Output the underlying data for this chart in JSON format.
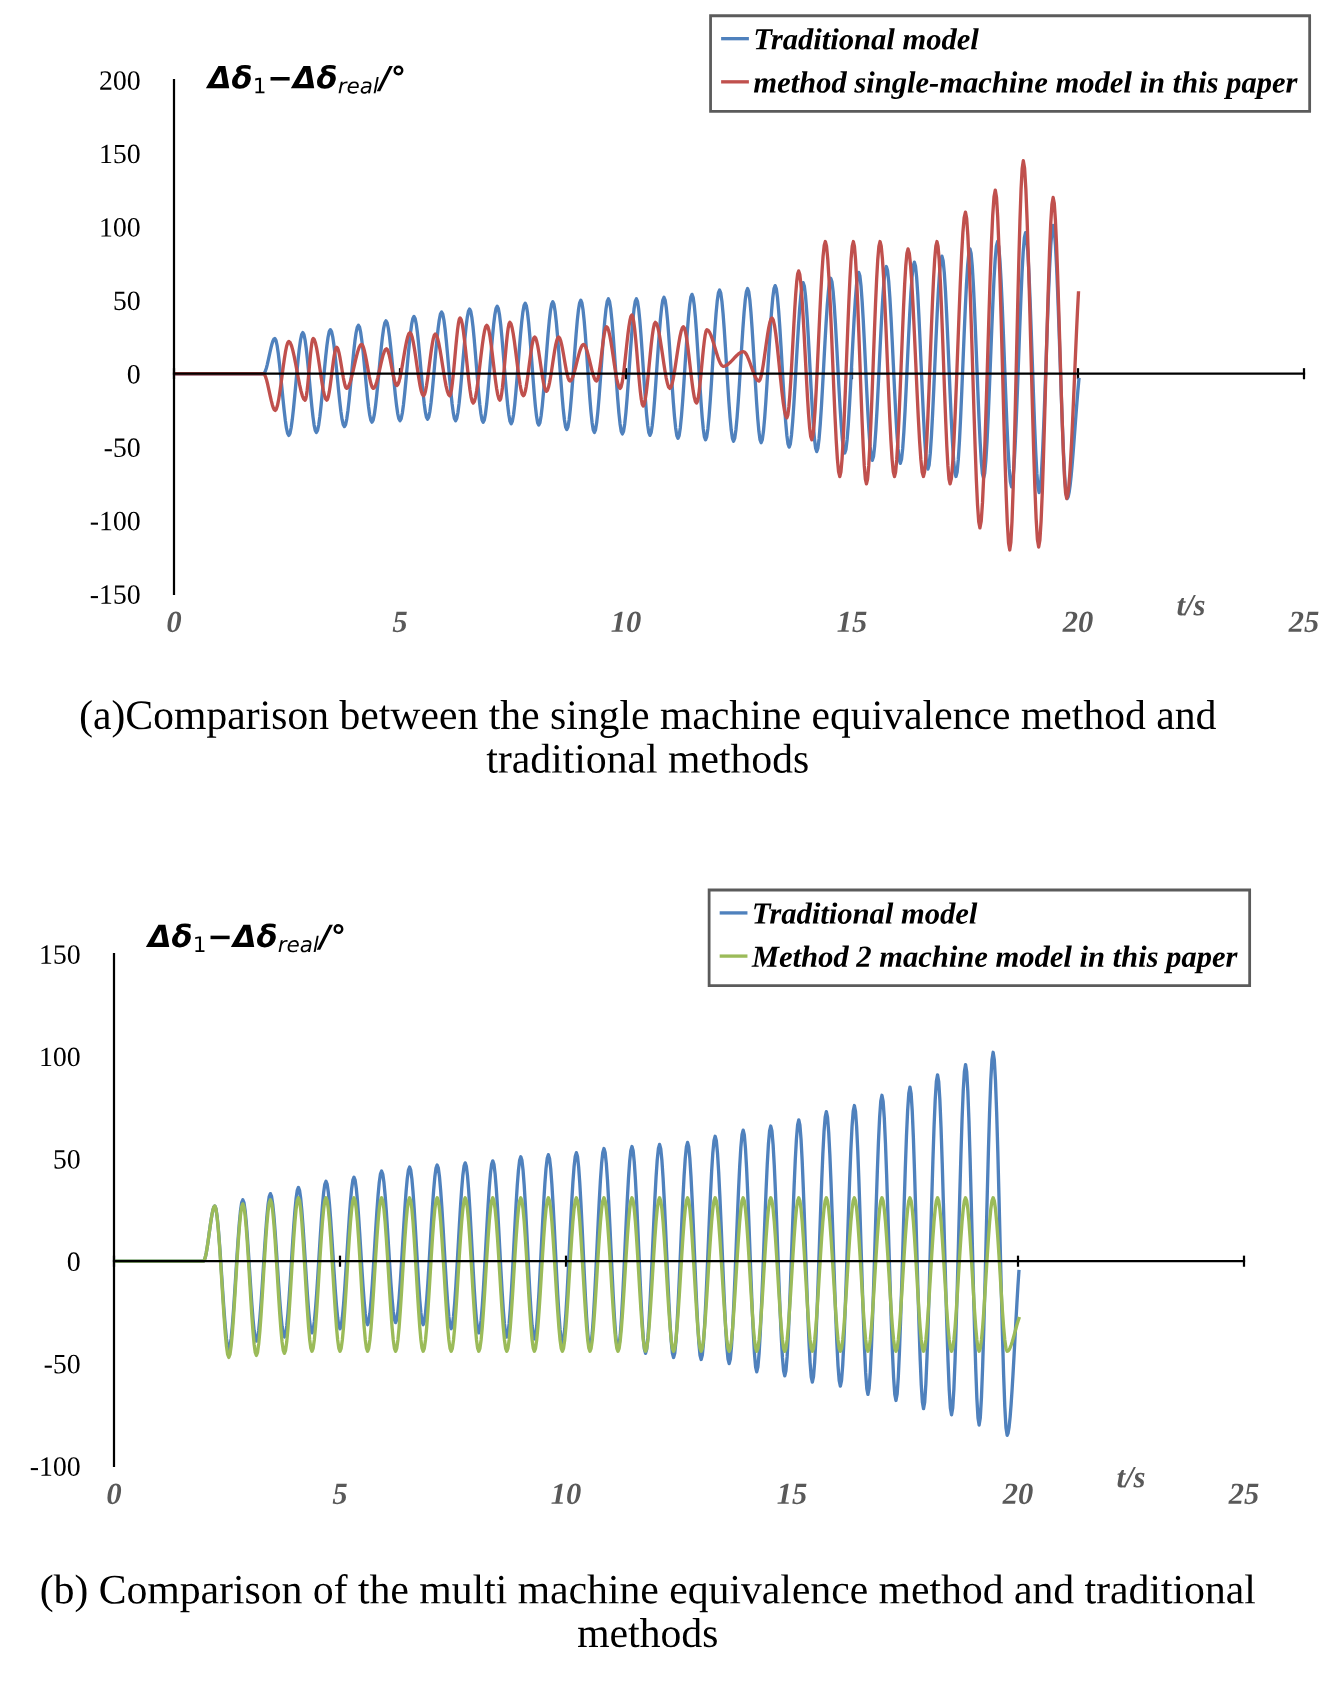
{
  "chart_data": [
    {
      "type": "line",
      "title": "(a)Comparison between the single machine equivalence method and traditional methods",
      "xlabel": "t/s",
      "ylabel": "Δδ$_{1}$−Δδ$_{real}$/°",
      "xlim": [
        0,
        25
      ],
      "xticks": [
        0,
        5,
        10,
        15,
        20,
        25
      ],
      "ylim": [
        -150,
        200
      ],
      "yticks": [
        -150,
        -100,
        -50,
        0,
        50,
        100,
        150,
        200
      ],
      "legend": "top right",
      "marker": "none",
      "line_style": "solid",
      "series": [
        {
          "name": "Traditional model",
          "color": "#4f81bd",
          "x": [
            0,
            1.98,
            2.23,
            2.54,
            2.85,
            3.15,
            3.46,
            3.77,
            4.08,
            4.38,
            4.69,
            5.0,
            5.31,
            5.61,
            5.92,
            6.23,
            6.54,
            6.84,
            7.15,
            7.46,
            7.77,
            8.07,
            8.38,
            8.69,
            9.0,
            9.3,
            9.61,
            9.92,
            10.23,
            10.53,
            10.84,
            11.15,
            11.46,
            11.76,
            12.07,
            12.38,
            12.69,
            12.99,
            13.3,
            13.61,
            13.92,
            14.22,
            14.53,
            14.84,
            15.15,
            15.45,
            15.76,
            16.07,
            16.38,
            16.68,
            16.99,
            17.3,
            17.61,
            17.91,
            18.22,
            18.53,
            18.84,
            19.14,
            19.45,
            19.76,
            20.02
          ],
          "values": [
            0,
            0,
            24,
            -42,
            28,
            -40,
            30,
            -36,
            33,
            -33,
            36,
            -32,
            39,
            -31,
            42,
            -32,
            44,
            -33,
            46,
            -34,
            48,
            -35,
            49,
            -38,
            50,
            -40,
            51,
            -41,
            51,
            -42,
            52,
            -44,
            54,
            -45,
            57,
            -46,
            58,
            -47,
            60,
            -50,
            62,
            -53,
            65,
            -54,
            69,
            -59,
            73,
            -61,
            76,
            -65,
            80,
            -70,
            85,
            -71,
            90,
            -77,
            96,
            -81,
            101,
            -85,
            -4
          ]
        },
        {
          "name": "method single-machine model in this paper",
          "color": "#c0504d",
          "x": [
            0,
            1.98,
            2.24,
            2.54,
            2.9,
            3.08,
            3.38,
            3.6,
            3.82,
            4.15,
            4.41,
            4.7,
            4.93,
            5.22,
            5.52,
            5.78,
            6.1,
            6.33,
            6.62,
            6.92,
            7.21,
            7.43,
            7.73,
            7.98,
            8.24,
            8.51,
            8.76,
            9.06,
            9.35,
            9.57,
            9.87,
            10.13,
            10.38,
            10.65,
            10.97,
            11.27,
            11.56,
            11.79,
            12.15,
            12.6,
            12.94,
            13.23,
            13.56,
            13.82,
            14.11,
            14.41,
            14.73,
            15.03,
            15.32,
            15.62,
            15.94,
            16.24,
            16.58,
            16.88,
            17.17,
            17.51,
            17.83,
            18.17,
            18.49,
            18.79,
            19.13,
            19.45,
            19.75,
            20.01
          ],
          "values": [
            0,
            0,
            -25,
            22,
            -18,
            24,
            -18,
            18,
            -10,
            20,
            -10,
            17,
            -8,
            28,
            -15,
            27,
            -15,
            38,
            -20,
            33,
            -18,
            35,
            -15,
            25,
            -12,
            25,
            -5,
            20,
            -5,
            32,
            -10,
            40,
            -22,
            35,
            -10,
            32,
            -20,
            30,
            5,
            15,
            -5,
            38,
            -30,
            70,
            -45,
            90,
            -70,
            90,
            -75,
            90,
            -70,
            85,
            -70,
            90,
            -75,
            110,
            -105,
            125,
            -120,
            145,
            -118,
            120,
            -85,
            55
          ]
        }
      ]
    },
    {
      "type": "line",
      "title": "(b) Comparison of the multi machine equivalence method and traditional methods",
      "xlabel": "t/s",
      "ylabel": "Δδ$_{1}$−Δδ$_{real}$/°",
      "xlim": [
        0,
        25
      ],
      "xticks": [
        0,
        5,
        10,
        15,
        20,
        25
      ],
      "ylim": [
        -100,
        150
      ],
      "yticks": [
        -100,
        -50,
        0,
        50,
        100,
        150
      ],
      "legend": "top right",
      "marker": "none",
      "line_style": "solid",
      "series": [
        {
          "name": "Traditional model",
          "color": "#4f81bd",
          "x": [
            0,
            1.98,
            2.23,
            2.54,
            2.85,
            3.15,
            3.46,
            3.77,
            4.08,
            4.38,
            4.69,
            5.0,
            5.31,
            5.61,
            5.92,
            6.23,
            6.54,
            6.84,
            7.15,
            7.46,
            7.77,
            8.07,
            8.38,
            8.69,
            9.0,
            9.3,
            9.61,
            9.92,
            10.23,
            10.53,
            10.84,
            11.15,
            11.46,
            11.76,
            12.07,
            12.38,
            12.69,
            12.99,
            13.3,
            13.61,
            13.92,
            14.22,
            14.53,
            14.84,
            15.15,
            15.45,
            15.76,
            16.07,
            16.38,
            16.68,
            16.99,
            17.3,
            17.61,
            17.91,
            18.22,
            18.53,
            18.84,
            19.14,
            19.45,
            19.76,
            20.02
          ],
          "values": [
            0,
            0,
            27,
            -43,
            30,
            -39,
            33,
            -37,
            36,
            -35,
            39,
            -33,
            41,
            -31,
            44,
            -30,
            46,
            -31,
            47,
            -33,
            48,
            -35,
            49,
            -37,
            51,
            -38,
            52,
            -40,
            53,
            -42,
            55,
            -43,
            56,
            -45,
            57,
            -47,
            58,
            -48,
            61,
            -50,
            64,
            -54,
            66,
            -56,
            69,
            -59,
            73,
            -61,
            76,
            -65,
            81,
            -68,
            85,
            -72,
            91,
            -75,
            96,
            -80,
            102,
            -85,
            -5
          ]
        },
        {
          "name": "Method 2 machine model in this paper",
          "color": "#9bbb59",
          "x": [
            0,
            1.98,
            2.23,
            2.54,
            2.85,
            3.15,
            3.46,
            3.77,
            4.08,
            4.38,
            4.69,
            5.0,
            5.31,
            5.61,
            5.92,
            6.23,
            6.54,
            6.84,
            7.15,
            7.46,
            7.77,
            8.07,
            8.38,
            8.69,
            9.0,
            9.3,
            9.61,
            9.92,
            10.23,
            10.53,
            10.84,
            11.15,
            11.46,
            11.76,
            12.07,
            12.38,
            12.69,
            12.99,
            13.3,
            13.61,
            13.92,
            14.22,
            14.53,
            14.84,
            15.15,
            15.45,
            15.76,
            16.07,
            16.38,
            16.68,
            16.99,
            17.3,
            17.61,
            17.91,
            18.22,
            18.53,
            18.84,
            19.14,
            19.45,
            19.76,
            20.02
          ],
          "values": [
            0,
            0,
            27,
            -47,
            28,
            -46,
            30,
            -45,
            31,
            -44,
            31,
            -44,
            31,
            -44,
            31,
            -44,
            31,
            -44,
            31,
            -44,
            31,
            -44,
            31,
            -44,
            31,
            -44,
            31,
            -44,
            31,
            -44,
            31,
            -44,
            31,
            -44,
            31,
            -44,
            31,
            -44,
            31,
            -44,
            31,
            -44,
            31,
            -44,
            31,
            -44,
            31,
            -44,
            31,
            -44,
            31,
            -44,
            31,
            -44,
            31,
            -44,
            31,
            -44,
            31,
            -44,
            -28
          ]
        }
      ]
    }
  ]
}
